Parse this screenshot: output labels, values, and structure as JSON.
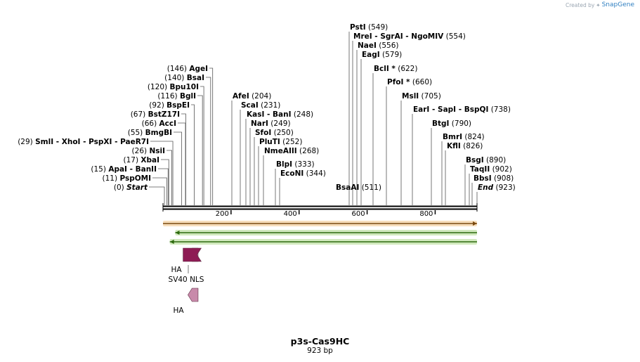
{
  "credit": {
    "prefix": "Created by",
    "brand": "SnapGene"
  },
  "plasmid": {
    "name": "p3s-Cas9HC",
    "length_label": "923 bp",
    "length_bp": 923
  },
  "ruler": {
    "ticks": [
      200,
      400,
      600,
      800
    ]
  },
  "left_sites": [
    {
      "names": "Start",
      "pos_label": "(0)",
      "bp": 0,
      "start_end": true
    },
    {
      "names": "PspOMI",
      "pos_label": "(11)",
      "bp": 11
    },
    {
      "names": "ApaI   - BanII",
      "pos_label": "(15)",
      "bp": 15
    },
    {
      "names": "XbaI",
      "pos_label": "(17)",
      "bp": 17
    },
    {
      "names": "NsiI",
      "pos_label": "(26)",
      "bp": 26
    },
    {
      "names": "SmlI   - XhoI   - PspXI   - PaeR7I",
      "pos_label": "(29)",
      "bp": 29
    },
    {
      "names": "BmgBI",
      "pos_label": "(55)",
      "bp": 55
    },
    {
      "names": "AccI",
      "pos_label": "(66)",
      "bp": 66
    },
    {
      "names": "BstZ17I",
      "pos_label": "(67)",
      "bp": 67
    },
    {
      "names": "BspEI",
      "pos_label": "(92)",
      "bp": 92
    },
    {
      "names": "BglI",
      "pos_label": "(116)",
      "bp": 116
    },
    {
      "names": "Bpu10I",
      "pos_label": "(120)",
      "bp": 120
    },
    {
      "names": "BsaI",
      "pos_label": "(140)",
      "bp": 140
    },
    {
      "names": "AgeI",
      "pos_label": "(146)",
      "bp": 146
    }
  ],
  "right_sites": [
    {
      "names": "BlpI",
      "pos_label": "(333)",
      "bp": 333
    },
    {
      "names": "EcoNI",
      "pos_label": "(344)",
      "bp": 344
    },
    {
      "names": "NmeAIII",
      "pos_label": "(268)",
      "bp": 268
    },
    {
      "names": "PluTI",
      "pos_label": "(252)",
      "bp": 252
    },
    {
      "names": "SfoI",
      "pos_label": "(250)",
      "bp": 250
    },
    {
      "names": "NarI",
      "pos_label": "(249)",
      "bp": 249
    },
    {
      "names": "KasI   - BanI",
      "pos_label": "(248)",
      "bp": 248
    },
    {
      "names": "ScaI",
      "pos_label": "(231)",
      "bp": 231
    },
    {
      "names": "AfeI",
      "pos_label": "(204)",
      "bp": 204
    },
    {
      "names": "BsaAI",
      "pos_label": "(511)",
      "bp": 511
    },
    {
      "names": "PstI",
      "pos_label": "(549)",
      "bp": 549
    },
    {
      "names": "MreI   - SgrAI   - NgoMIV",
      "pos_label": "(554)",
      "bp": 554
    },
    {
      "names": "NaeI",
      "pos_label": "(556)",
      "bp": 556
    },
    {
      "names": "EagI",
      "pos_label": "(579)",
      "bp": 579
    },
    {
      "names": "BclI *",
      "pos_label": "(622)",
      "bp": 622
    },
    {
      "names": "PfoI *",
      "pos_label": "(660)",
      "bp": 660
    },
    {
      "names": "MslI",
      "pos_label": "(705)",
      "bp": 705
    },
    {
      "names": "EarI   - SapI   - BspQI",
      "pos_label": "(738)",
      "bp": 738
    },
    {
      "names": "BtgI",
      "pos_label": "(790)",
      "bp": 790
    },
    {
      "names": "BmrI",
      "pos_label": "(824)",
      "bp": 824
    },
    {
      "names": "KflI",
      "pos_label": "(826)",
      "bp": 826
    },
    {
      "names": "BsgI",
      "pos_label": "(890)",
      "bp": 890
    },
    {
      "names": "TaqII",
      "pos_label": "(902)",
      "bp": 902
    },
    {
      "names": "BbsI",
      "pos_label": "(908)",
      "bp": 908
    },
    {
      "names": "End",
      "pos_label": "(923)",
      "bp": 923,
      "start_end": true
    }
  ],
  "features": [
    {
      "name": "SV40 NLS",
      "start": 36,
      "end": 90,
      "direction": "reverse",
      "color": "#8e1b54"
    },
    {
      "name": "HA",
      "start": 36,
      "end": 66,
      "direction": "reverse",
      "color": "#c88aaa"
    },
    {
      "name": "HA",
      "start": 36,
      "end": 66,
      "direction": "reverse",
      "color": "#c88aaa"
    }
  ],
  "orfs": [
    {
      "direction": "forward",
      "start": 0,
      "end": 923,
      "color": "#e8a040"
    },
    {
      "direction": "reverse",
      "start": 36,
      "end": 923,
      "color": "#7ac143"
    },
    {
      "direction": "reverse",
      "start": 20,
      "end": 923,
      "color": "#7ac143"
    }
  ]
}
